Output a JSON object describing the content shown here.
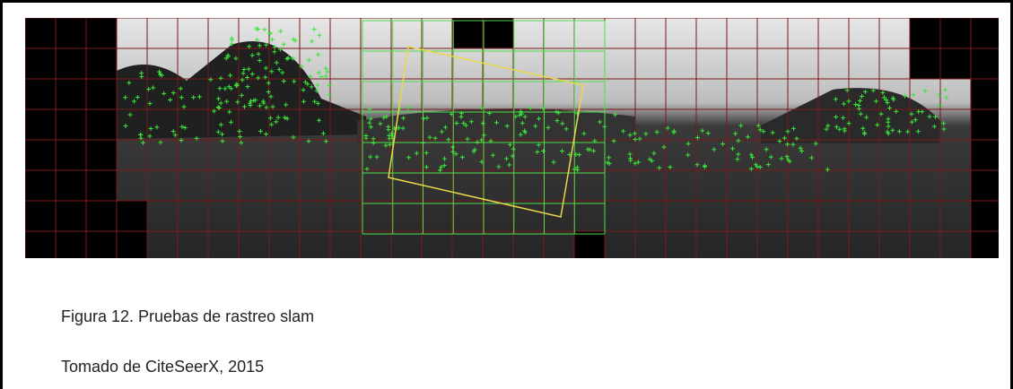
{
  "caption": {
    "title": "Figura 12. Pruebas de rastreo slam",
    "source": "Tomado de CiteSeerX, 2015"
  }
}
